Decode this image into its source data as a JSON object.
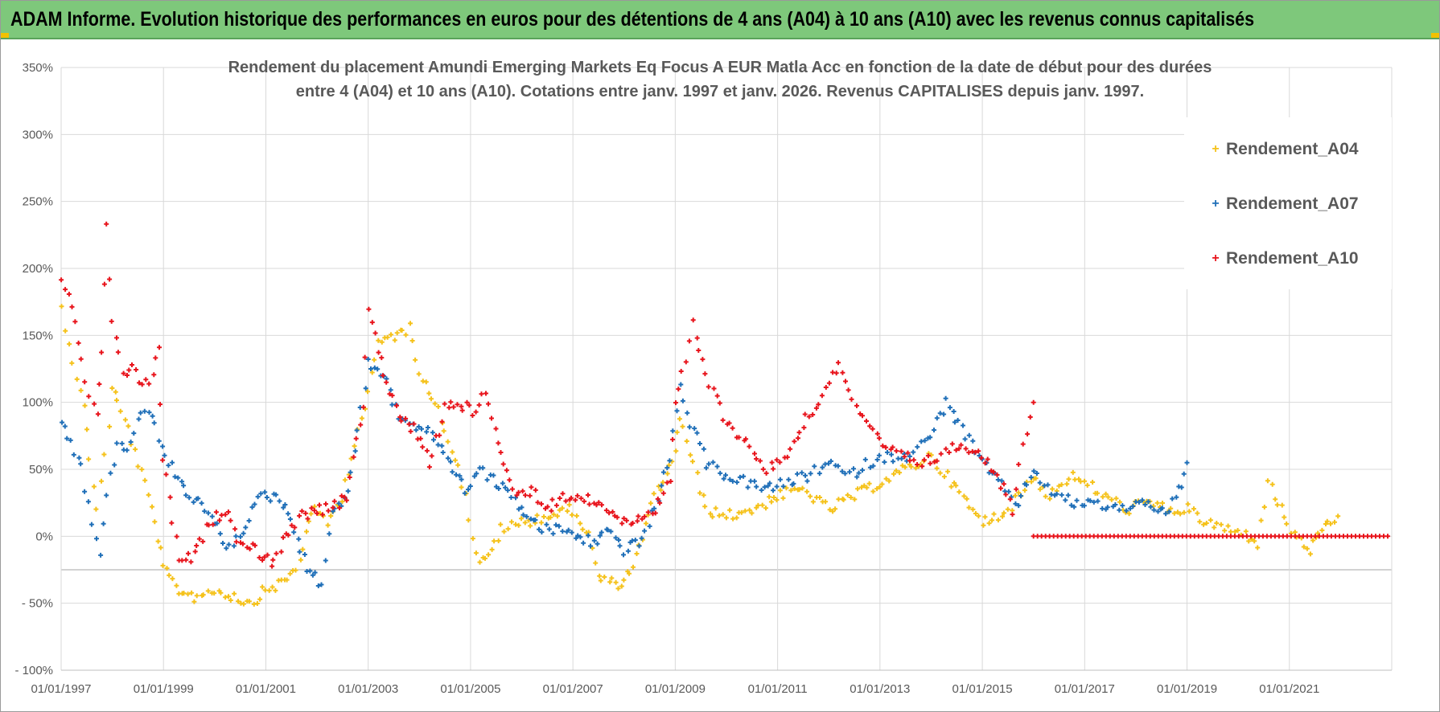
{
  "banner": {
    "title": "ADAM Informe. Evolution historique des performances en euros pour des détentions de 4 ans (A04) à 10 ans (A10) avec les revenus connus capitalisés"
  },
  "colors": {
    "banner_bg": "#7ec87b",
    "A04": "#f5c21b",
    "A07": "#1f6fb8",
    "A10": "#e8141c",
    "grid": "#d9d9d9",
    "text": "#595959"
  },
  "chart_data": {
    "type": "scatter",
    "title_line1": "Rendement du placement Amundi Emerging Markets Eq Focus A EUR Matla Acc en fonction de la date de début pour des durées",
    "title_line2": "entre 4 (A04) et 10 ans (A10).  Cotations entre janv. 1997 et janv. 2026. Revenus CAPITALISES depuis janv. 1997.",
    "x_range": [
      1997.0,
      2023.0
    ],
    "ylim": [
      -100,
      350
    ],
    "y_ticks": [
      350,
      300,
      250,
      200,
      150,
      100,
      50,
      0,
      -50,
      -100
    ],
    "y_tick_labels": [
      "350%",
      "300%",
      "250%",
      "200%",
      "150%",
      "100%",
      "50%",
      "0%",
      "- 50%",
      "- 100%"
    ],
    "x_ticks": [
      1997,
      1999,
      2001,
      2003,
      2005,
      2007,
      2009,
      2011,
      2013,
      2015,
      2017,
      2019,
      2021
    ],
    "x_tick_labels": [
      "01/01/1997",
      "01/01/1999",
      "01/01/2001",
      "01/01/2003",
      "01/01/2005",
      "01/01/2007",
      "01/01/2009",
      "01/01/2011",
      "01/01/2013",
      "01/01/2015",
      "01/01/2017",
      "01/01/2019",
      "01/01/2021"
    ],
    "legend": [
      "Rendement_A04",
      "Rendement_A07",
      "Rendement_A10"
    ],
    "legend_position": "top-right",
    "grid": true,
    "marker": "+",
    "series": [
      {
        "name": "Rendement_A04",
        "x": [
          1997.0,
          1997.15,
          1997.3,
          1997.45,
          1997.55,
          1997.7,
          1997.85,
          1998.0,
          1998.1,
          1998.3,
          1998.5,
          1998.7,
          1998.9,
          1999.0,
          1999.3,
          1999.6,
          2000.0,
          2000.4,
          2000.7,
          2001.0,
          2001.3,
          2001.6,
          2001.9,
          2002.2,
          2002.5,
          2002.8,
          2003.0,
          2003.2,
          2003.5,
          2003.8,
          2004.0,
          2004.3,
          2004.5,
          2004.7,
          2004.9,
          2005.1,
          2005.3,
          2005.6,
          2006.0,
          2006.5,
          2007.0,
          2007.3,
          2007.5,
          2007.7,
          2008.0,
          2008.3,
          2008.6,
          2008.9,
          2009.0,
          2009.1,
          2009.3,
          2009.6,
          2010.0,
          2010.5,
          2011.0,
          2011.5,
          2012.0,
          2012.5,
          2013.0,
          2013.5,
          2014.0,
          2014.5,
          2015.0,
          2015.5,
          2016.0,
          2016.3,
          2016.7,
          2017.0,
          2017.4,
          2017.8,
          2018.2,
          2018.6,
          2019.0,
          2019.4,
          2019.8,
          2020.2,
          2020.4,
          2020.6,
          2020.9,
          2021.1,
          2021.4,
          2021.7,
          2021.95
        ],
        "values": [
          170,
          145,
          120,
          95,
          60,
          20,
          60,
          110,
          100,
          80,
          55,
          30,
          0,
          -25,
          -40,
          -45,
          -40,
          -45,
          -50,
          -40,
          -35,
          -25,
          20,
          10,
          30,
          80,
          105,
          145,
          150,
          155,
          125,
          100,
          80,
          60,
          30,
          -15,
          -20,
          5,
          10,
          15,
          20,
          0,
          -30,
          -35,
          -35,
          -10,
          30,
          50,
          65,
          90,
          60,
          20,
          15,
          20,
          30,
          35,
          20,
          30,
          40,
          50,
          60,
          35,
          10,
          20,
          45,
          30,
          45,
          40,
          30,
          20,
          25,
          20,
          20,
          10,
          5,
          0,
          -5,
          40,
          15,
          0,
          -10,
          5,
          15
        ]
      },
      {
        "name": "Rendement_A07",
        "x": [
          1997.0,
          1997.2,
          1997.4,
          1997.6,
          1997.75,
          1997.9,
          1998.1,
          1998.3,
          1998.5,
          1998.7,
          1998.9,
          1999.1,
          1999.4,
          1999.7,
          2000.0,
          2000.3,
          2000.6,
          2000.9,
          2001.2,
          2001.5,
          2001.8,
          2002.1,
          2002.3,
          2002.6,
          2002.8,
          2003.0,
          2003.3,
          2003.6,
          2004.0,
          2004.3,
          2004.6,
          2004.9,
          2005.2,
          2005.5,
          2005.8,
          2006.1,
          2006.4,
          2006.8,
          2007.1,
          2007.4,
          2007.7,
          2008.0,
          2008.3,
          2008.6,
          2008.9,
          2009.1,
          2009.3,
          2009.6,
          2010.0,
          2010.4,
          2010.8,
          2011.2,
          2011.6,
          2012.0,
          2012.4,
          2012.8,
          2013.2,
          2013.6,
          2014.0,
          2014.3,
          2014.6,
          2015.0,
          2015.3,
          2015.7,
          2016.0,
          2016.4,
          2016.8,
          2017.2,
          2017.6,
          2018.0,
          2018.3,
          2018.6,
          2018.9,
          2019.0
        ],
        "values": [
          85,
          70,
          50,
          10,
          -15,
          30,
          70,
          65,
          85,
          95,
          75,
          55,
          35,
          25,
          10,
          -10,
          10,
          30,
          30,
          15,
          -25,
          -35,
          20,
          30,
          80,
          130,
          120,
          90,
          80,
          75,
          55,
          35,
          50,
          40,
          30,
          15,
          5,
          5,
          0,
          -5,
          5,
          -10,
          -5,
          20,
          60,
          110,
          85,
          55,
          45,
          40,
          35,
          40,
          45,
          55,
          45,
          55,
          60,
          60,
          75,
          100,
          80,
          55,
          40,
          25,
          50,
          30,
          25,
          25,
          20,
          25,
          25,
          15,
          40,
          55
        ]
      },
      {
        "name": "Rendement_A10",
        "x": [
          1997.0,
          1997.2,
          1997.4,
          1997.55,
          1997.7,
          1997.8,
          1997.9,
          1998.0,
          1998.2,
          1998.4,
          1998.6,
          1998.8,
          1998.9,
          1999.0,
          1999.3,
          1999.6,
          1999.9,
          2000.2,
          2000.5,
          2000.8,
          2001.1,
          2001.4,
          2001.7,
          2002.0,
          2002.3,
          2002.6,
          2002.9,
          2003.0,
          2003.3,
          2003.6,
          2003.9,
          2004.2,
          2004.5,
          2004.8,
          2005.1,
          2005.3,
          2005.6,
          2005.9,
          2006.2,
          2006.5,
          2006.8,
          2007.1,
          2007.4,
          2007.7,
          2008.0,
          2008.3,
          2008.6,
          2008.9,
          2009.0,
          2009.2,
          2009.35,
          2009.6,
          2010.0,
          2010.4,
          2010.8,
          2011.2,
          2011.5,
          2011.8,
          2012.2,
          2012.6,
          2013.0,
          2013.4,
          2013.8,
          2014.2,
          2014.6,
          2015.0,
          2015.3,
          2015.6,
          2015.8,
          2016.0
        ],
        "values": [
          190,
          170,
          130,
          105,
          90,
          140,
          230,
          160,
          120,
          130,
          110,
          120,
          140,
          60,
          -20,
          -15,
          10,
          20,
          -5,
          -10,
          -20,
          0,
          15,
          20,
          20,
          30,
          100,
          170,
          120,
          90,
          80,
          55,
          95,
          100,
          90,
          110,
          60,
          30,
          35,
          20,
          30,
          30,
          25,
          20,
          10,
          15,
          20,
          40,
          100,
          130,
          160,
          120,
          85,
          70,
          50,
          60,
          85,
          100,
          130,
          90,
          70,
          60,
          55,
          60,
          70,
          60,
          45,
          20,
          70,
          100
        ]
      },
      {
        "name": "Rendement_A10 (zero line)",
        "x": [
          2016.0,
          2023.0
        ],
        "values": [
          0,
          0
        ]
      }
    ]
  }
}
